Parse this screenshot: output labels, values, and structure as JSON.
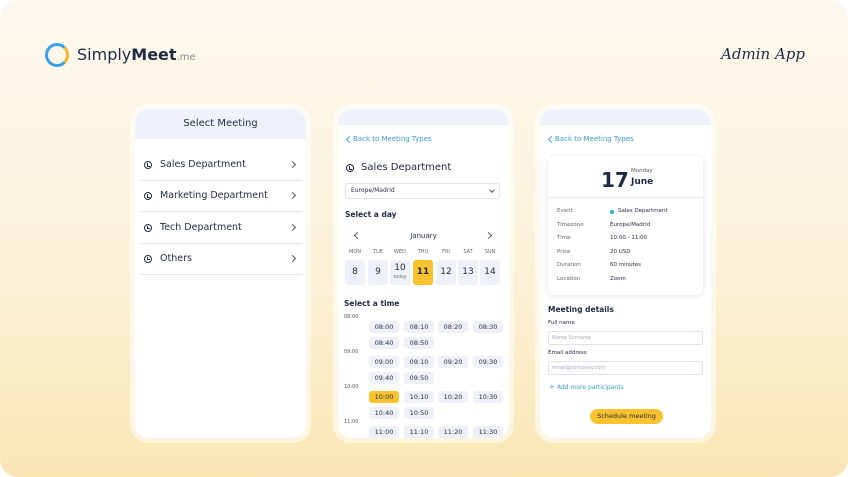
{
  "header": {
    "brand_light": "Simply",
    "brand_bold": "Meet",
    "brand_suffix": ".me",
    "app": "Admin App"
  },
  "screen1": {
    "title": "Select Meeting",
    "items": [
      "Sales Department",
      "Marketing Department",
      "Tech Department",
      "Others"
    ]
  },
  "screen2": {
    "back": "Back to Meeting Types",
    "title": "Sales Department",
    "timezone": "Europe/Madrid",
    "day_heading": "Select a day",
    "month": "January",
    "days": [
      {
        "name": "MON",
        "date": 8
      },
      {
        "name": "TUE",
        "date": 9
      },
      {
        "name": "WED",
        "date": 10,
        "note": "today"
      },
      {
        "name": "THU",
        "date": 11,
        "selected": true
      },
      {
        "name": "FRI",
        "date": 12
      },
      {
        "name": "SAT",
        "date": 13
      },
      {
        "name": "SUN",
        "date": 14
      }
    ],
    "time_heading": "Select a time",
    "slots": [
      {
        "hour": "08:00",
        "times": [
          "08:00",
          "08:10",
          "08:20",
          "08:30",
          "08:40",
          "08:50"
        ]
      },
      {
        "hour": "09:00",
        "times": [
          "09:00",
          "09:10",
          "09:20",
          "09:30",
          "09:40",
          "09:50"
        ]
      },
      {
        "hour": "10:00",
        "times": [
          {
            "label": "10:00",
            "selected": true
          },
          "10:10",
          "10:20",
          "10:30",
          "10:40",
          "10:50"
        ]
      },
      {
        "hour": "11:00",
        "times": [
          "11:00",
          "11:10",
          "11:20",
          "11:30"
        ]
      }
    ]
  },
  "screen3": {
    "back": "Back to Meeting Types",
    "day": 17,
    "weekday": "Monday",
    "month": "June",
    "details": [
      {
        "label": "Event",
        "value": "Sales Department",
        "dot": true
      },
      {
        "label": "Timezone",
        "value": "Europe/Madrid"
      },
      {
        "label": "Time",
        "value": "10:00 - 11:00"
      },
      {
        "label": "Price",
        "value": "20 USD"
      },
      {
        "label": "Duration",
        "value": "60 minutes"
      },
      {
        "label": "Location",
        "value": "Zoom"
      }
    ],
    "form_heading": "Meeting details",
    "fields": [
      {
        "label": "Full name",
        "placeholder": "Name Surname"
      },
      {
        "label": "Email address",
        "placeholder": "email@company.com"
      }
    ],
    "add": "Add more participants",
    "button": "Schedule meeting"
  }
}
